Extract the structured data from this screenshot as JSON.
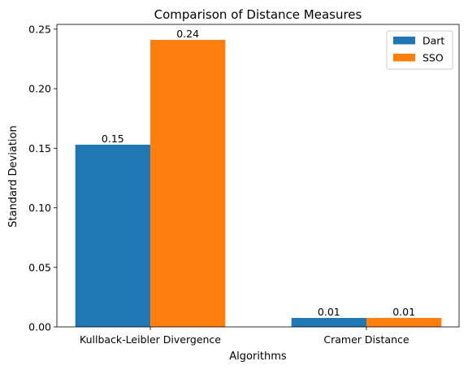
{
  "chart_data": {
    "type": "bar",
    "title": "Comparison of Distance Measures",
    "xlabel": "Algorithms",
    "ylabel": "Standard Deviation",
    "categories": [
      "Kullback-Leibler Divergence",
      "Cramer Distance"
    ],
    "series": [
      {
        "name": "Dart",
        "values": [
          0.153,
          0.0075
        ],
        "labels": [
          "0.15",
          "0.01"
        ],
        "color": "#1f77b4"
      },
      {
        "name": "SSO",
        "values": [
          0.241,
          0.0075
        ],
        "labels": [
          "0.24",
          "0.01"
        ],
        "color": "#ff7f0e"
      }
    ],
    "ylim": [
      0,
      0.254
    ],
    "yticks": [
      0.0,
      0.05,
      0.1,
      0.15,
      0.2,
      0.25
    ],
    "ytick_labels": [
      "0.00",
      "0.05",
      "0.10",
      "0.15",
      "0.20",
      "0.25"
    ],
    "grid": false,
    "legend_position": "top-right"
  }
}
